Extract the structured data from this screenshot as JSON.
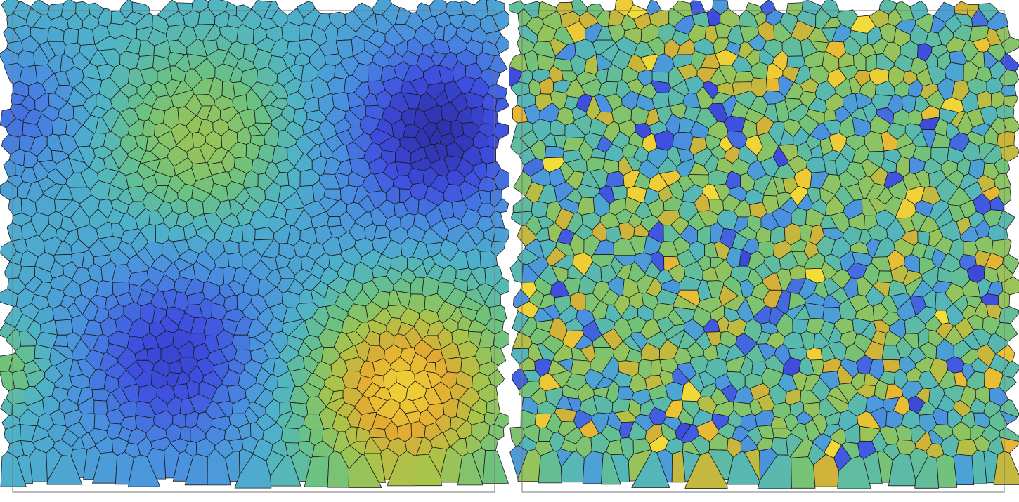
{
  "figure": {
    "panels": [
      {
        "id": "left",
        "description_key": "smooth-field",
        "colormap": [
          "#2a2aa0",
          "#3f4fe0",
          "#4a8fe0",
          "#4fb3c8",
          "#6cc280",
          "#a9c44a",
          "#e3aa32",
          "#f5e63a"
        ],
        "edge_color": "#1b1b1b",
        "frame_color": "#777777"
      },
      {
        "id": "right",
        "description_key": "noisy-field",
        "colormap": [
          "#2a2aa0",
          "#3f4fe0",
          "#4a8fe0",
          "#4fb3c8",
          "#6cc280",
          "#a9c44a",
          "#e3aa32",
          "#f5e63a"
        ],
        "edge_color": "#1b1b1b",
        "frame_color": "#777777"
      }
    ]
  }
}
